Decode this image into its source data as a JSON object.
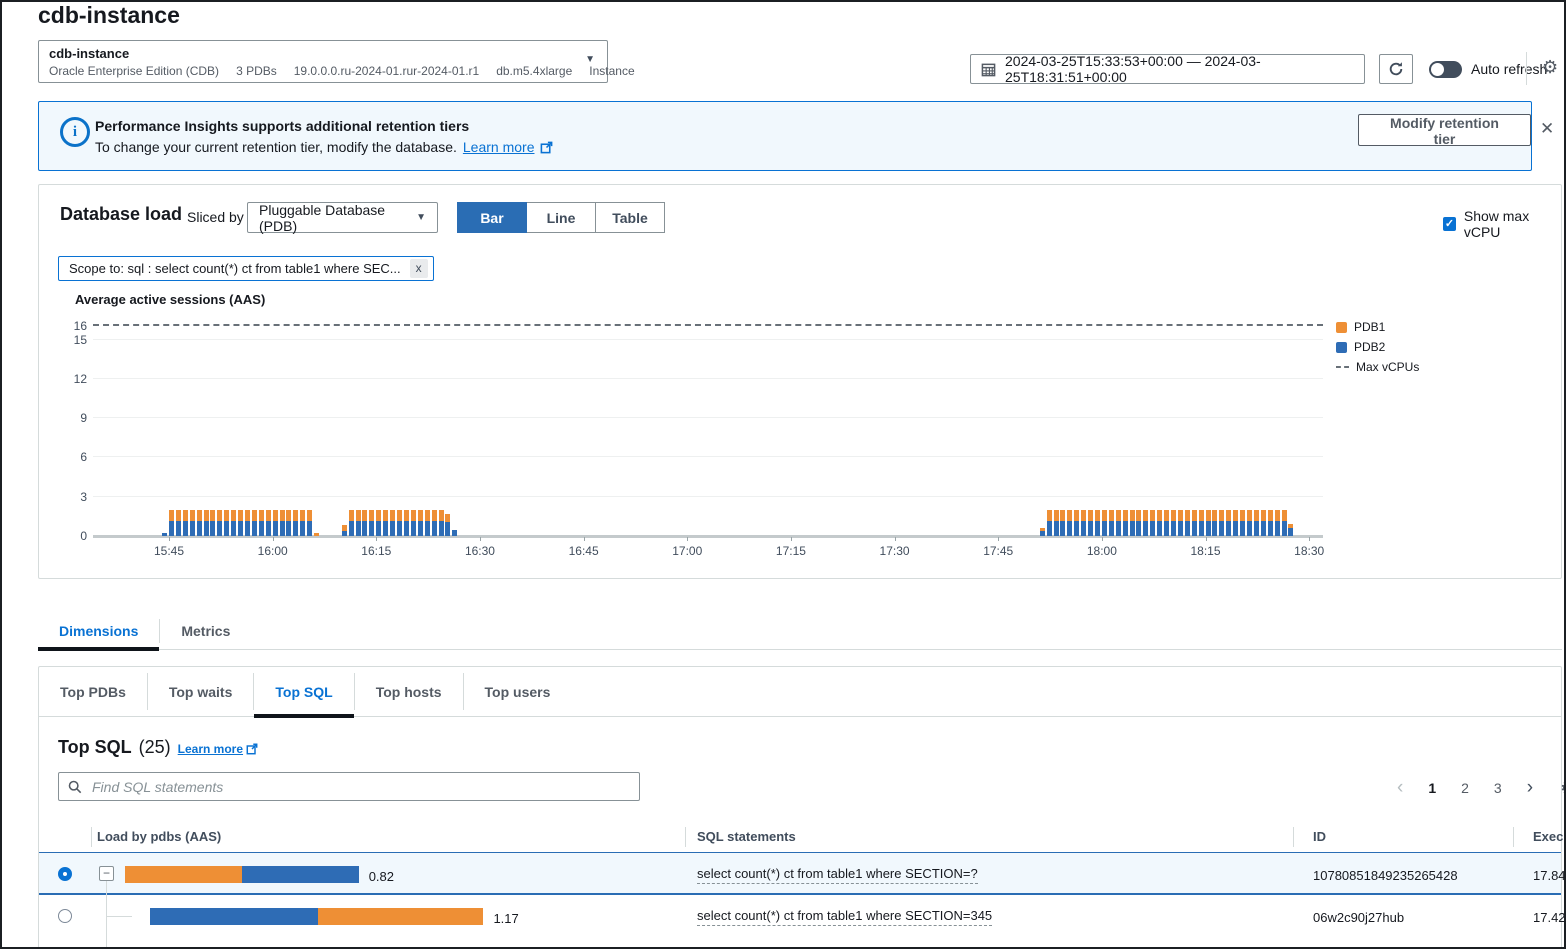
{
  "page": {
    "title": "cdb-instance"
  },
  "instance_selector": {
    "name": "cdb-instance",
    "details": [
      "Oracle Enterprise Edition (CDB)",
      "3 PDBs",
      "19.0.0.0.ru-2024-01.rur-2024-01.r1",
      "db.m5.4xlarge",
      "Instance"
    ]
  },
  "toolbar": {
    "time_range": "2024-03-25T15:33:53+00:00 — 2024-03-25T18:31:51+00:00",
    "auto_refresh_label": "Auto refresh"
  },
  "banner": {
    "title": "Performance Insights supports additional retention tiers",
    "body": "To change your current retention tier, modify the database.",
    "link": "Learn more",
    "button": "Modify retention tier"
  },
  "load_section": {
    "title": "Database load",
    "sliced_by_label": "Sliced by",
    "slice_value": "Pluggable Database (PDB)",
    "view_modes": [
      "Bar",
      "Line",
      "Table"
    ],
    "active_mode": "Bar",
    "show_max_vcpu_label": "Show max vCPU",
    "show_max_vcpu_checked": true,
    "scope_tag": "Scope to: sql : select count(*) ct from table1 where SEC...",
    "scope_close": "x"
  },
  "colors": {
    "pdb1": "#ee8f35",
    "pdb2": "#2e6cb5",
    "accent": "#0972d3",
    "max_line": "#687078"
  },
  "chart_data": {
    "type": "bar",
    "stacked": true,
    "title": "Average active sessions (AAS)",
    "ylabel": "Average active sessions (AAS)",
    "ylim": [
      0,
      16.1
    ],
    "yticks": [
      16,
      15,
      12,
      9,
      6,
      3,
      0
    ],
    "gridlines": [
      3,
      6,
      9,
      12,
      15
    ],
    "max_vcpus_value": 16,
    "x_start_time": "15:34",
    "x_total_minutes": 178,
    "xticks": [
      {
        "min": 11,
        "label": "15:45"
      },
      {
        "min": 26,
        "label": "16:00"
      },
      {
        "min": 41,
        "label": "16:15"
      },
      {
        "min": 56,
        "label": "16:30"
      },
      {
        "min": 71,
        "label": "16:45"
      },
      {
        "min": 86,
        "label": "17:00"
      },
      {
        "min": 101,
        "label": "17:15"
      },
      {
        "min": 116,
        "label": "17:30"
      },
      {
        "min": 131,
        "label": "17:45"
      },
      {
        "min": 146,
        "label": "18:00"
      },
      {
        "min": 161,
        "label": "18:15"
      },
      {
        "min": 176,
        "label": "18:30"
      }
    ],
    "series": [
      {
        "name": "PDB1",
        "color_key": "pdb1"
      },
      {
        "name": "PDB2",
        "color_key": "pdb2"
      }
    ],
    "legend": [
      {
        "label": "PDB1",
        "swatch": "pdb1"
      },
      {
        "label": "PDB2",
        "swatch": "pdb2"
      },
      {
        "label": "Max vCPUs",
        "swatch": "dash"
      }
    ],
    "bar_clusters": [
      {
        "start_min": 10,
        "count": 23,
        "default": {
          "pdb2": 1.15,
          "pdb1": 0.8
        },
        "overrides": {
          "0": {
            "pdb2": 0.25,
            "pdb1": 0
          },
          "22": {
            "pdb2": 0,
            "pdb1": 0.2
          }
        }
      },
      {
        "start_min": 36,
        "count": 17,
        "default": {
          "pdb2": 1.15,
          "pdb1": 0.8
        },
        "overrides": {
          "0": {
            "pdb2": 0.4,
            "pdb1": 0.45
          },
          "15": {
            "pdb2": 1.05,
            "pdb1": 0.6
          },
          "16": {
            "pdb2": 0.45,
            "pdb1": 0
          }
        }
      },
      {
        "start_min": 137,
        "count": 37,
        "default": {
          "pdb2": 1.15,
          "pdb1": 0.8
        },
        "overrides": {
          "0": {
            "pdb2": 0.35,
            "pdb1": 0.25
          },
          "36": {
            "pdb2": 0.6,
            "pdb1": 0.35
          }
        }
      }
    ]
  },
  "primary_tabs": {
    "items": [
      "Dimensions",
      "Metrics"
    ],
    "active": "Dimensions"
  },
  "dimension_tabs": {
    "items": [
      "Top PDBs",
      "Top waits",
      "Top SQL",
      "Top hosts",
      "Top users"
    ],
    "active": "Top SQL"
  },
  "top_sql": {
    "title": "Top SQL",
    "count": "(25)",
    "learn_more": "Learn more",
    "search_placeholder": "Find SQL statements",
    "pagination": {
      "prev": "‹",
      "pages": [
        "1",
        "2",
        "3"
      ],
      "current": "1",
      "next": "›"
    },
    "table": {
      "columns": [
        "Load by pdbs (AAS)",
        "SQL statements",
        "ID",
        "Execu"
      ],
      "rows": [
        {
          "selected": true,
          "tree": "parent",
          "load_label": "0.82",
          "segments": [
            {
              "series": "pdb1",
              "value": 0.41
            },
            {
              "series": "pdb2",
              "value": 0.41
            }
          ],
          "sql": "select count(*) ct from table1 where SECTION=?",
          "id": "10780851849235265428",
          "exec": "17.84"
        },
        {
          "selected": false,
          "tree": "child",
          "load_label": "1.17",
          "segments": [
            {
              "series": "pdb2",
              "value": 0.59
            },
            {
              "series": "pdb1",
              "value": 0.58
            }
          ],
          "sql": "select count(*) ct from table1 where SECTION=345",
          "id": "06w2c90j27hub",
          "exec": "17.42"
        }
      ]
    }
  }
}
